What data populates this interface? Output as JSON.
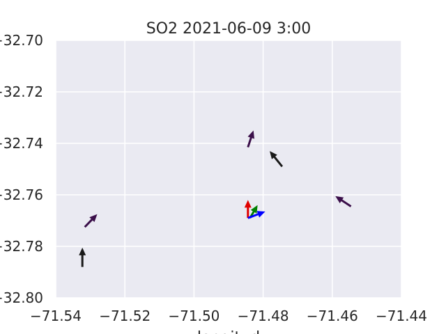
{
  "chart_data": {
    "type": "quiver",
    "title": "SO2 2021-06-09 3:00",
    "xlabel": "longitud",
    "ylabel": "",
    "xlim": [
      -71.54,
      -71.44
    ],
    "ylim": [
      -32.8,
      -32.7
    ],
    "grid": true,
    "background_color": "#eaeaf2",
    "grid_color": "#ffffff",
    "xticks": [
      -71.54,
      -71.52,
      -71.5,
      -71.48,
      -71.46,
      -71.44
    ],
    "xtick_labels": [
      "−71.54",
      "−71.52",
      "−71.50",
      "−71.48",
      "−71.46",
      "−71.44"
    ],
    "yticks": [
      -32.7,
      -32.72,
      -32.74,
      -32.76,
      -32.78,
      -32.8
    ],
    "ytick_labels": [
      "−32.70",
      "−32.72",
      "−32.74",
      "−32.76",
      "−32.78",
      "−32.80"
    ],
    "arrows": [
      {
        "x": -71.5316,
        "y": -32.7725,
        "dx": 0.0036,
        "dy": 0.005,
        "color": "#3b0f4a"
      },
      {
        "x": -71.5323,
        "y": -32.788,
        "dx": 0.0,
        "dy": 0.0075,
        "color": "#1a1a1a"
      },
      {
        "x": -71.4844,
        "y": -32.7415,
        "dx": 0.0016,
        "dy": 0.0065,
        "color": "#3b0f4a"
      },
      {
        "x": -71.4745,
        "y": -32.749,
        "dx": -0.0036,
        "dy": 0.006,
        "color": "#1a1a1a"
      },
      {
        "x": -71.4546,
        "y": -32.7645,
        "dx": -0.0045,
        "dy": 0.004,
        "color": "#3b0f4a"
      },
      {
        "x": -71.4844,
        "y": -32.769,
        "dx": 0.0,
        "dy": 0.007,
        "color": "#e00000"
      },
      {
        "x": -71.4838,
        "y": -32.769,
        "dx": 0.0022,
        "dy": 0.005,
        "color": "#008000"
      },
      {
        "x": -71.4844,
        "y": -32.769,
        "dx": 0.005,
        "dy": 0.0025,
        "color": "#0000ff"
      }
    ]
  }
}
